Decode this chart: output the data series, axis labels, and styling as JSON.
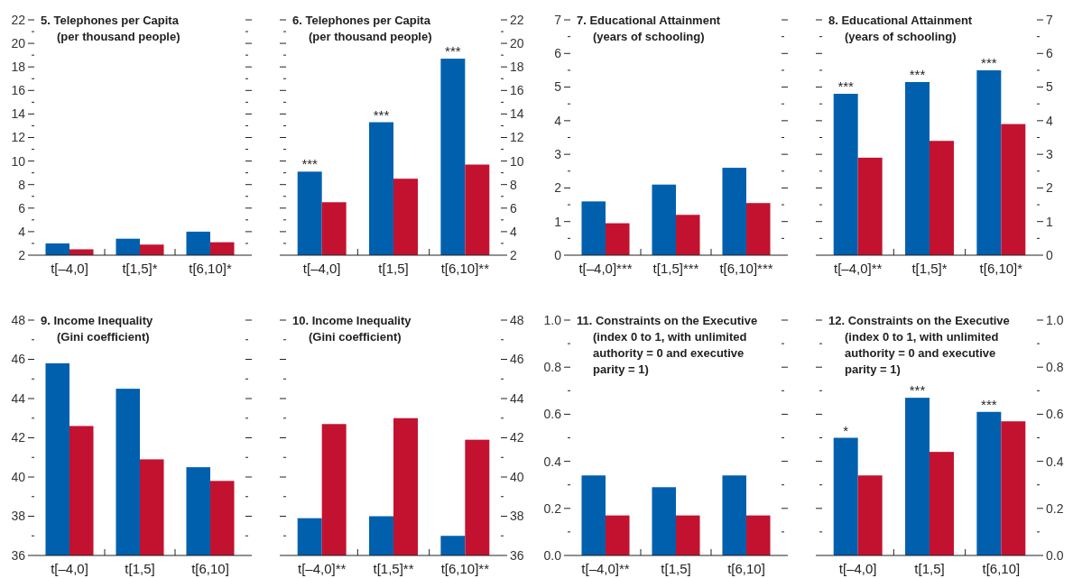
{
  "chart_data": [
    {
      "type": "bar",
      "title": "5. Telephones per Capita",
      "subtitle": "(per thousand people)",
      "categories": [
        "t[–4,0]",
        "t[1,5]*",
        "t[6,10]*"
      ],
      "series": [
        {
          "color": "#0060ae",
          "values": [
            3.0,
            3.4,
            4.0
          ]
        },
        {
          "color": "#c3122f",
          "values": [
            2.5,
            2.9,
            3.1
          ]
        }
      ],
      "ylim": [
        2,
        22
      ],
      "yticks": [
        2,
        {
          "value": 3,
          "label": null
        },
        4,
        {
          "value": 5,
          "label": null
        },
        6,
        {
          "value": 7,
          "label": null
        },
        8,
        {
          "value": 9,
          "label": null
        },
        10,
        {
          "value": 11,
          "label": null
        },
        12,
        {
          "value": 13,
          "label": null
        },
        14,
        {
          "value": 15,
          "label": null
        },
        16,
        {
          "value": 17,
          "label": null
        },
        18,
        {
          "value": 19,
          "label": null
        },
        20,
        {
          "value": 21,
          "label": null
        },
        22
      ]
    },
    {
      "type": "bar",
      "title": "6. Telephones per Capita",
      "subtitle": "(per thousand people)",
      "categories": [
        "t[–4,0]",
        "t[1,5]",
        "t[6,10]**"
      ],
      "series": [
        {
          "color": "#0060ae",
          "values": [
            9.1,
            13.3,
            18.7
          ],
          "axis": "y2"
        },
        {
          "color": "#c3122f",
          "values": [
            6.5,
            8.5,
            9.7
          ],
          "axis": "y2"
        }
      ],
      "y2lim": [
        2,
        22
      ],
      "y2ticks": [
        2,
        {
          "value": 3,
          "label": null
        },
        4,
        {
          "value": 5,
          "label": null
        },
        6,
        {
          "value": 7,
          "label": null
        },
        8,
        {
          "value": 9,
          "label": null
        },
        10,
        {
          "value": 11,
          "label": null
        },
        12,
        {
          "value": 13,
          "label": null
        },
        14,
        {
          "value": 15,
          "label": null
        },
        16,
        {
          "value": 17,
          "label": null
        },
        18,
        {
          "value": 19,
          "label": null
        },
        20,
        {
          "value": 21,
          "label": null
        },
        22
      ],
      "annotations": [
        "***",
        "***",
        "***"
      ]
    },
    {
      "type": "bar",
      "title": "7. Educational Attainment",
      "subtitle": "(years of schooling)",
      "categories": [
        "t[–4,0]***",
        "t[1,5]***",
        "t[6,10]***"
      ],
      "series": [
        {
          "color": "#0060ae",
          "values": [
            1.6,
            2.1,
            2.6
          ]
        },
        {
          "color": "#c3122f",
          "values": [
            0.95,
            1.2,
            1.55
          ]
        }
      ],
      "ylim": [
        0,
        7
      ],
      "yticks": [
        0,
        {
          "value": 0.5,
          "label": null
        },
        1,
        {
          "value": 1.5,
          "label": null
        },
        2,
        {
          "value": 2.5,
          "label": null
        },
        3,
        {
          "value": 3.5,
          "label": null
        },
        4,
        {
          "value": 4.5,
          "label": null
        },
        5,
        {
          "value": 5.5,
          "label": null
        },
        6,
        {
          "value": 6.5,
          "label": null
        },
        7
      ]
    },
    {
      "type": "bar",
      "title": "8. Educational Attainment",
      "subtitle": "(years of schooling)",
      "categories": [
        "t[–4,0]**",
        "t[1,5]*",
        "t[6,10]*"
      ],
      "series": [
        {
          "color": "#0060ae",
          "values": [
            4.8,
            5.15,
            5.5
          ],
          "axis": "y2"
        },
        {
          "color": "#c3122f",
          "values": [
            2.9,
            3.4,
            3.9
          ],
          "axis": "y2"
        }
      ],
      "y2lim": [
        0,
        7
      ],
      "y2ticks": [
        0,
        {
          "value": 0.5,
          "label": null
        },
        1,
        {
          "value": 1.5,
          "label": null
        },
        2,
        {
          "value": 2.5,
          "label": null
        },
        3,
        {
          "value": 3.5,
          "label": null
        },
        4,
        {
          "value": 4.5,
          "label": null
        },
        5,
        {
          "value": 5.5,
          "label": null
        },
        6,
        {
          "value": 6.5,
          "label": null
        },
        7
      ],
      "annotations": [
        "***",
        "***",
        "***"
      ]
    },
    {
      "type": "bar",
      "title": "9. Income Inequality",
      "subtitle": "(Gini coefficient)",
      "categories": [
        "t[–4,0]",
        "t[1,5]",
        "t[6,10]"
      ],
      "series": [
        {
          "color": "#0060ae",
          "values": [
            45.8,
            44.5,
            40.5
          ]
        },
        {
          "color": "#c3122f",
          "values": [
            42.6,
            40.9,
            39.8
          ]
        }
      ],
      "ylim": [
        36,
        48
      ],
      "yticks": [
        36,
        {
          "value": 37,
          "label": null
        },
        38,
        {
          "value": 39,
          "label": null
        },
        40,
        {
          "value": 41,
          "label": null
        },
        42,
        {
          "value": 43,
          "label": null
        },
        44,
        {
          "value": 45,
          "label": null
        },
        46,
        {
          "value": 47,
          "label": null
        },
        48
      ]
    },
    {
      "type": "bar",
      "title": "10. Income Inequality",
      "subtitle": "(Gini coefficient)",
      "categories": [
        "t[–4,0]**",
        "t[1,5]**",
        "t[6,10]**"
      ],
      "series": [
        {
          "color": "#0060ae",
          "values": [
            37.9,
            38.0,
            37.0
          ],
          "axis": "y2"
        },
        {
          "color": "#c3122f",
          "values": [
            42.7,
            43.0,
            41.9
          ],
          "axis": "y2"
        }
      ],
      "y2lim": [
        36,
        48
      ],
      "y2ticks": [
        36,
        {
          "value": 37,
          "label": null
        },
        38,
        {
          "value": 39,
          "label": null
        },
        40,
        {
          "value": 41,
          "label": null
        },
        42,
        {
          "value": 43,
          "label": null
        },
        44,
        {
          "value": 45,
          "label": null
        },
        46,
        {
          "value": 47,
          "label": null
        },
        48
      ]
    },
    {
      "type": "bar",
      "title": "11. Constraints on the Executive",
      "subtitle": "(index 0 to 1, with unlimited authority = 0 and executive parity = 1)",
      "categories": [
        "t[–4,0]**",
        "t[1,5]",
        "t[6,10]"
      ],
      "series": [
        {
          "color": "#0060ae",
          "values": [
            0.34,
            0.29,
            0.34
          ]
        },
        {
          "color": "#c3122f",
          "values": [
            0.17,
            0.17,
            0.17
          ]
        }
      ],
      "ylim": [
        0,
        1
      ],
      "yticks": [
        {
          "value": 0,
          "label": "0.0"
        },
        {
          "value": 0.1,
          "label": null
        },
        0.2,
        {
          "value": 0.3,
          "label": null
        },
        0.4,
        {
          "value": 0.5,
          "label": null
        },
        0.6,
        {
          "value": 0.7,
          "label": null
        },
        0.8,
        {
          "value": 0.9,
          "label": null
        },
        {
          "value": 1,
          "label": "1.0"
        }
      ]
    },
    {
      "type": "bar",
      "title": "12. Constraints on the Executive",
      "subtitle": "(index 0 to 1, with unlimited authority = 0 and executive parity = 1)",
      "categories": [
        "t[–4,0]",
        "t[1,5]",
        "t[6,10]"
      ],
      "series": [
        {
          "color": "#0060ae",
          "values": [
            0.5,
            0.67,
            0.61
          ],
          "axis": "y2"
        },
        {
          "color": "#c3122f",
          "values": [
            0.34,
            0.44,
            0.57
          ],
          "axis": "y2"
        }
      ],
      "y2lim": [
        0,
        1
      ],
      "y2ticks": [
        {
          "value": 0,
          "label": "0.0"
        },
        {
          "value": 0.1,
          "label": null
        },
        0.2,
        {
          "value": 0.3,
          "label": null
        },
        0.4,
        {
          "value": 0.5,
          "label": null
        },
        0.6,
        {
          "value": 0.7,
          "label": null
        },
        0.8,
        {
          "value": 0.9,
          "label": null
        },
        {
          "value": 1,
          "label": "1.0"
        }
      ],
      "annotations": [
        "*",
        "***",
        "***"
      ]
    }
  ]
}
